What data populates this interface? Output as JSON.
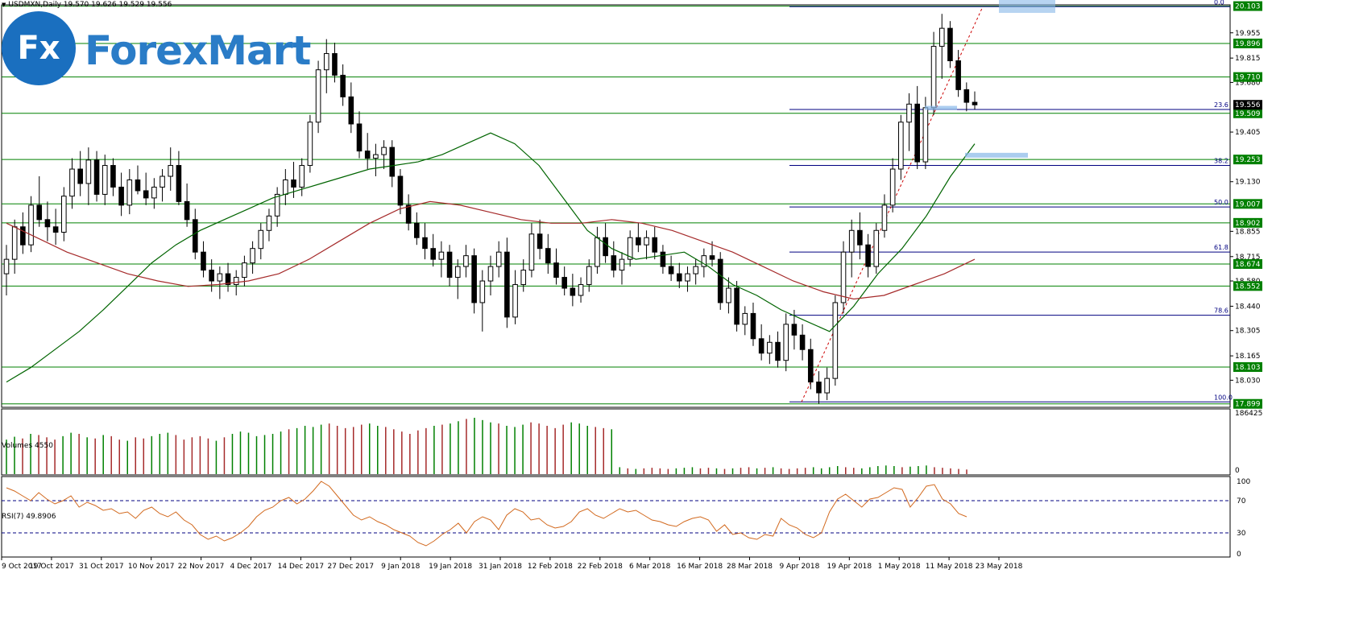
{
  "header": {
    "symbol_line": "USDMXN,Daily  19.570 19.626 19.529 19.556"
  },
  "logo": {
    "badge_text": "Fx",
    "brand_text": "ForexMart"
  },
  "colors": {
    "background": "#ffffff",
    "grid": "#c0c0c0",
    "support_resistance": "#008000",
    "fibonacci": "#000080",
    "ma_fast": "#006400",
    "ma_slow": "#a52a2a",
    "candle_up": "#ffffff",
    "candle_down": "#000000",
    "volume_up": "#008000",
    "volume_down": "#a52a2a",
    "rsi_line": "#d2691e",
    "price_tag_bg": "#008000",
    "current_price_bg": "#000000"
  },
  "chart_data": [
    {
      "type": "candlestick",
      "title": "USDMXN,Daily",
      "ohlc_header": {
        "open": 19.57,
        "high": 19.626,
        "low": 19.529,
        "close": 19.556
      },
      "x_tick_labels": [
        "9 Oct 2017",
        "19 Oct 2017",
        "31 Oct 2017",
        "10 Nov 2017",
        "22 Nov 2017",
        "4 Dec 2017",
        "14 Dec 2017",
        "27 Dec 2017",
        "9 Jan 2018",
        "19 Jan 2018",
        "31 Jan 2018",
        "12 Feb 2018",
        "22 Feb 2018",
        "6 Mar 2018",
        "16 Mar 2018",
        "28 Mar 2018",
        "9 Apr 2018",
        "19 Apr 2018",
        "1 May 2018",
        "11 May 2018",
        "23 May 2018"
      ],
      "y_tick_labels": [
        "19.955",
        "19.815",
        "19.680",
        "19.405",
        "19.130",
        "18.855",
        "18.715",
        "18.580",
        "18.440",
        "18.305",
        "18.165",
        "18.030"
      ],
      "ylim": [
        17.88,
        20.11
      ],
      "support_resistance_levels": [
        "20.103",
        "19.896",
        "19.710",
        "19.509",
        "19.253",
        "19.007",
        "18.902",
        "18.674",
        "18.552",
        "18.103",
        "17.899"
      ],
      "current_price": "19.556",
      "fibonacci": {
        "levels": [
          {
            "label": "0.0",
            "price": 20.1
          },
          {
            "label": "23.6",
            "price": 19.53
          },
          {
            "label": "38.2",
            "price": 19.22
          },
          {
            "label": "50.0",
            "price": 18.99
          },
          {
            "label": "61.8",
            "price": 18.74
          },
          {
            "label": "78.6",
            "price": 18.39
          },
          {
            "label": "100.0",
            "price": 17.91
          }
        ]
      },
      "ohlc": [
        [
          18.62,
          18.78,
          18.5,
          18.7
        ],
        [
          18.7,
          18.92,
          18.62,
          18.88
        ],
        [
          18.88,
          18.96,
          18.73,
          18.78
        ],
        [
          18.78,
          19.05,
          18.74,
          19.0
        ],
        [
          19.0,
          19.16,
          18.88,
          18.92
        ],
        [
          18.92,
          19.02,
          18.8,
          18.88
        ],
        [
          18.88,
          18.98,
          18.78,
          18.85
        ],
        [
          18.85,
          19.1,
          18.8,
          19.05
        ],
        [
          19.05,
          19.26,
          18.98,
          19.2
        ],
        [
          19.2,
          19.3,
          19.05,
          19.12
        ],
        [
          19.12,
          19.32,
          19.0,
          19.25
        ],
        [
          19.25,
          19.3,
          19.02,
          19.06
        ],
        [
          19.06,
          19.28,
          19.0,
          19.22
        ],
        [
          19.22,
          19.26,
          19.05,
          19.1
        ],
        [
          19.1,
          19.18,
          18.94,
          19.0
        ],
        [
          19.0,
          19.2,
          18.95,
          19.14
        ],
        [
          19.14,
          19.22,
          19.06,
          19.08
        ],
        [
          19.08,
          19.18,
          19.0,
          19.04
        ],
        [
          19.04,
          19.15,
          18.98,
          19.1
        ],
        [
          19.1,
          19.2,
          19.02,
          19.16
        ],
        [
          19.16,
          19.32,
          19.08,
          19.22
        ],
        [
          19.22,
          19.3,
          19.0,
          19.02
        ],
        [
          19.02,
          19.12,
          18.88,
          18.92
        ],
        [
          18.92,
          18.98,
          18.7,
          18.74
        ],
        [
          18.74,
          18.8,
          18.6,
          18.64
        ],
        [
          18.64,
          18.7,
          18.52,
          18.58
        ],
        [
          18.58,
          18.66,
          18.48,
          18.62
        ],
        [
          18.62,
          18.68,
          18.52,
          18.56
        ],
        [
          18.56,
          18.64,
          18.5,
          18.6
        ],
        [
          18.6,
          18.72,
          18.55,
          18.68
        ],
        [
          18.68,
          18.8,
          18.62,
          18.76
        ],
        [
          18.76,
          18.9,
          18.7,
          18.86
        ],
        [
          18.86,
          18.98,
          18.8,
          18.94
        ],
        [
          18.94,
          19.1,
          18.88,
          19.06
        ],
        [
          19.06,
          19.2,
          19.0,
          19.14
        ],
        [
          19.14,
          19.24,
          19.04,
          19.1
        ],
        [
          19.1,
          19.26,
          19.05,
          19.22
        ],
        [
          19.22,
          19.5,
          19.18,
          19.46
        ],
        [
          19.46,
          19.8,
          19.4,
          19.75
        ],
        [
          19.75,
          19.92,
          19.62,
          19.84
        ],
        [
          19.84,
          19.9,
          19.68,
          19.72
        ],
        [
          19.72,
          19.78,
          19.55,
          19.6
        ],
        [
          19.6,
          19.68,
          19.4,
          19.45
        ],
        [
          19.45,
          19.52,
          19.26,
          19.3
        ],
        [
          19.3,
          19.4,
          19.2,
          19.26
        ],
        [
          19.26,
          19.34,
          19.16,
          19.28
        ],
        [
          19.28,
          19.36,
          19.2,
          19.32
        ],
        [
          19.32,
          19.36,
          19.1,
          19.16
        ],
        [
          19.16,
          19.2,
          18.95,
          19.0
        ],
        [
          19.0,
          19.06,
          18.86,
          18.9
        ],
        [
          18.9,
          18.96,
          18.78,
          18.82
        ],
        [
          18.82,
          18.9,
          18.7,
          18.76
        ],
        [
          18.76,
          18.84,
          18.66,
          18.7
        ],
        [
          18.7,
          18.8,
          18.6,
          18.74
        ],
        [
          18.74,
          18.78,
          18.55,
          18.6
        ],
        [
          18.6,
          18.7,
          18.48,
          18.66
        ],
        [
          18.66,
          18.78,
          18.6,
          18.72
        ],
        [
          18.72,
          18.76,
          18.4,
          18.46
        ],
        [
          18.46,
          18.64,
          18.3,
          18.58
        ],
        [
          18.58,
          18.72,
          18.5,
          18.66
        ],
        [
          18.66,
          18.8,
          18.6,
          18.74
        ],
        [
          18.74,
          18.82,
          18.32,
          18.38
        ],
        [
          18.38,
          18.64,
          18.34,
          18.56
        ],
        [
          18.56,
          18.7,
          18.52,
          18.64
        ],
        [
          18.64,
          18.9,
          18.6,
          18.84
        ],
        [
          18.84,
          18.92,
          18.7,
          18.76
        ],
        [
          18.76,
          18.84,
          18.62,
          18.68
        ],
        [
          18.68,
          18.76,
          18.56,
          18.6
        ],
        [
          18.6,
          18.66,
          18.5,
          18.54
        ],
        [
          18.54,
          18.62,
          18.44,
          18.5
        ],
        [
          18.5,
          18.6,
          18.46,
          18.56
        ],
        [
          18.56,
          18.7,
          18.52,
          18.66
        ],
        [
          18.66,
          18.88,
          18.62,
          18.82
        ],
        [
          18.82,
          18.9,
          18.68,
          18.72
        ],
        [
          18.72,
          18.8,
          18.6,
          18.64
        ],
        [
          18.64,
          18.74,
          18.56,
          18.7
        ],
        [
          18.7,
          18.86,
          18.66,
          18.82
        ],
        [
          18.82,
          18.9,
          18.74,
          18.78
        ],
        [
          18.78,
          18.86,
          18.7,
          18.82
        ],
        [
          18.82,
          18.88,
          18.7,
          18.74
        ],
        [
          18.74,
          18.78,
          18.62,
          18.66
        ],
        [
          18.66,
          18.72,
          18.58,
          18.62
        ],
        [
          18.62,
          18.68,
          18.54,
          18.58
        ],
        [
          18.58,
          18.66,
          18.52,
          18.62
        ],
        [
          18.62,
          18.7,
          18.56,
          18.66
        ],
        [
          18.66,
          18.76,
          18.6,
          18.72
        ],
        [
          18.72,
          18.8,
          18.66,
          18.7
        ],
        [
          18.7,
          18.74,
          18.42,
          18.46
        ],
        [
          18.46,
          18.6,
          18.4,
          18.54
        ],
        [
          18.54,
          18.58,
          18.3,
          18.34
        ],
        [
          18.34,
          18.44,
          18.28,
          18.4
        ],
        [
          18.4,
          18.46,
          18.22,
          18.26
        ],
        [
          18.26,
          18.34,
          18.14,
          18.18
        ],
        [
          18.18,
          18.28,
          18.12,
          18.24
        ],
        [
          18.24,
          18.3,
          18.1,
          18.14
        ],
        [
          18.14,
          18.4,
          18.08,
          18.34
        ],
        [
          18.34,
          18.42,
          18.2,
          18.28
        ],
        [
          18.28,
          18.34,
          18.14,
          18.2
        ],
        [
          18.2,
          18.26,
          17.98,
          18.02
        ],
        [
          18.02,
          18.08,
          17.9,
          17.96
        ],
        [
          17.96,
          18.1,
          17.92,
          18.04
        ],
        [
          18.04,
          18.5,
          18.0,
          18.46
        ],
        [
          18.46,
          18.8,
          18.4,
          18.74
        ],
        [
          18.74,
          18.92,
          18.6,
          18.86
        ],
        [
          18.86,
          18.96,
          18.7,
          18.78
        ],
        [
          18.78,
          18.84,
          18.6,
          18.66
        ],
        [
          18.66,
          18.9,
          18.62,
          18.86
        ],
        [
          18.86,
          19.06,
          18.82,
          19.0
        ],
        [
          19.0,
          19.26,
          18.96,
          19.2
        ],
        [
          19.2,
          19.5,
          19.14,
          19.46
        ],
        [
          19.46,
          19.62,
          19.3,
          19.56
        ],
        [
          19.56,
          19.66,
          19.2,
          19.24
        ],
        [
          19.24,
          19.6,
          19.2,
          19.54
        ],
        [
          19.54,
          19.96,
          19.5,
          19.88
        ],
        [
          19.88,
          20.06,
          19.7,
          19.98
        ],
        [
          19.98,
          20.02,
          19.76,
          19.8
        ],
        [
          19.8,
          19.86,
          19.6,
          19.64
        ],
        [
          19.64,
          19.68,
          19.52,
          19.57
        ],
        [
          19.57,
          19.63,
          19.53,
          19.556
        ]
      ],
      "moving_averages": [
        {
          "name": "",
          "color": "#006400",
          "values": [
            18.02,
            18.1,
            18.2,
            18.3,
            18.42,
            18.55,
            18.68,
            18.78,
            18.86,
            18.92,
            18.98,
            19.04,
            19.08,
            19.12,
            19.16,
            19.2,
            19.22,
            19.24,
            19.28,
            19.34,
            19.4,
            19.34,
            19.22,
            19.04,
            18.86,
            18.76,
            18.7,
            18.72,
            18.74,
            18.66,
            18.56,
            18.5,
            18.42,
            18.36,
            18.3,
            18.44,
            18.62,
            18.76,
            18.94,
            19.16,
            19.34
          ]
        },
        {
          "name": "",
          "color": "#a52a2a",
          "values": [
            18.9,
            18.82,
            18.74,
            18.68,
            18.62,
            18.58,
            18.55,
            18.56,
            18.58,
            18.62,
            18.7,
            18.8,
            18.9,
            18.98,
            19.02,
            19.0,
            18.96,
            18.92,
            18.9,
            18.9,
            18.92,
            18.9,
            18.86,
            18.8,
            18.74,
            18.66,
            18.58,
            18.52,
            18.48,
            18.5,
            18.56,
            18.62,
            18.7
          ]
        }
      ]
    },
    {
      "type": "bar",
      "title": "Volumes 4550",
      "y_tick_labels": [
        "186425",
        "0"
      ],
      "ylim": [
        0,
        186425
      ],
      "values": [
        60,
        65,
        62,
        70,
        68,
        64,
        60,
        66,
        72,
        70,
        64,
        62,
        68,
        66,
        60,
        58,
        64,
        62,
        66,
        70,
        72,
        68,
        60,
        64,
        66,
        62,
        58,
        64,
        70,
        74,
        72,
        66,
        68,
        70,
        74,
        78,
        80,
        84,
        82,
        86,
        88,
        84,
        80,
        82,
        86,
        88,
        84,
        82,
        78,
        74,
        70,
        76,
        80,
        84,
        86,
        88,
        92,
        96,
        98,
        94,
        90,
        88,
        84,
        82,
        86,
        90,
        88,
        84,
        80,
        86,
        90,
        88,
        84,
        82,
        80,
        78,
        12,
        10,
        9,
        10,
        11,
        10,
        9,
        10,
        11,
        12,
        10,
        11,
        10,
        9,
        10,
        11,
        12,
        10,
        11,
        12,
        10,
        9,
        10,
        11,
        12,
        10,
        12,
        14,
        12,
        11,
        10,
        12,
        14,
        15,
        14,
        12,
        13,
        14,
        15,
        12,
        11,
        10,
        9,
        8
      ]
    },
    {
      "type": "line",
      "title": "RSI(7) 49.8906",
      "y_tick_labels": [
        "100",
        "70",
        "30",
        "0"
      ],
      "ylim": [
        0,
        100
      ],
      "reference_lines": [
        70,
        30
      ],
      "values": [
        86,
        82,
        76,
        70,
        80,
        72,
        66,
        70,
        76,
        62,
        68,
        64,
        58,
        60,
        54,
        56,
        48,
        58,
        62,
        54,
        50,
        56,
        46,
        40,
        28,
        22,
        26,
        20,
        24,
        30,
        38,
        50,
        58,
        62,
        70,
        74,
        66,
        72,
        82,
        94,
        88,
        76,
        64,
        52,
        46,
        50,
        44,
        40,
        34,
        30,
        26,
        18,
        14,
        20,
        28,
        34,
        42,
        30,
        44,
        50,
        46,
        34,
        52,
        60,
        56,
        46,
        48,
        40,
        36,
        38,
        44,
        56,
        60,
        52,
        48,
        54,
        60,
        56,
        58,
        52,
        46,
        44,
        40,
        38,
        44,
        48,
        50,
        46,
        32,
        40,
        28,
        30,
        24,
        22,
        28,
        26,
        48,
        40,
        36,
        28,
        24,
        30,
        56,
        72,
        78,
        70,
        62,
        72,
        74,
        80,
        86,
        84,
        62,
        74,
        88,
        90,
        72,
        66,
        54,
        50
      ]
    }
  ]
}
